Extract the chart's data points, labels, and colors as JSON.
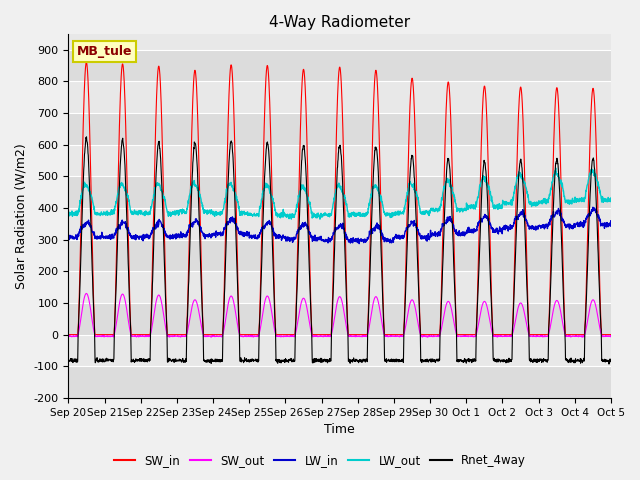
{
  "title": "4-Way Radiometer",
  "xlabel": "Time",
  "ylabel": "Solar Radiation (W/m2)",
  "ylim": [
    -200,
    950
  ],
  "yticks": [
    -200,
    -100,
    0,
    100,
    200,
    300,
    400,
    500,
    600,
    700,
    800,
    900
  ],
  "station_label": "MB_tule",
  "colors": {
    "SW_in": "#FF0000",
    "SW_out": "#FF00FF",
    "LW_in": "#0000CC",
    "LW_out": "#00CCCC",
    "Rnet_4way": "#000000"
  },
  "legend_entries": [
    "SW_in",
    "SW_out",
    "LW_in",
    "LW_out",
    "Rnet_4way"
  ],
  "fig_facecolor": "#F0F0F0",
  "plot_bg_color": "#E8E8E8",
  "n_days": 15,
  "sw_in_peaks": [
    860,
    855,
    848,
    835,
    852,
    850,
    838,
    845,
    835,
    810,
    798,
    785,
    782,
    780,
    778
  ],
  "sw_out_peaks": [
    130,
    128,
    125,
    110,
    122,
    122,
    115,
    120,
    120,
    110,
    105,
    105,
    100,
    108,
    110
  ],
  "lw_in_base": [
    308,
    308,
    308,
    312,
    318,
    308,
    303,
    298,
    298,
    308,
    318,
    328,
    338,
    343,
    348
  ],
  "lw_out_base": [
    382,
    384,
    384,
    388,
    384,
    380,
    375,
    380,
    380,
    385,
    395,
    405,
    415,
    420,
    425
  ],
  "rnet_night": -82,
  "rnet_day_peak": [
    620,
    615,
    605,
    605,
    610,
    605,
    598,
    598,
    595,
    565,
    555,
    545,
    550,
    555,
    555
  ],
  "tick_labels": [
    "Sep 20",
    "Sep 21",
    "Sep 22",
    "Sep 23",
    "Sep 24",
    "Sep 25",
    "Sep 26",
    "Sep 27",
    "Sep 28",
    "Sep 29",
    "Sep 30",
    "Oct 1",
    "Oct 2",
    "Oct 3",
    "Oct 4",
    "Oct 5"
  ]
}
